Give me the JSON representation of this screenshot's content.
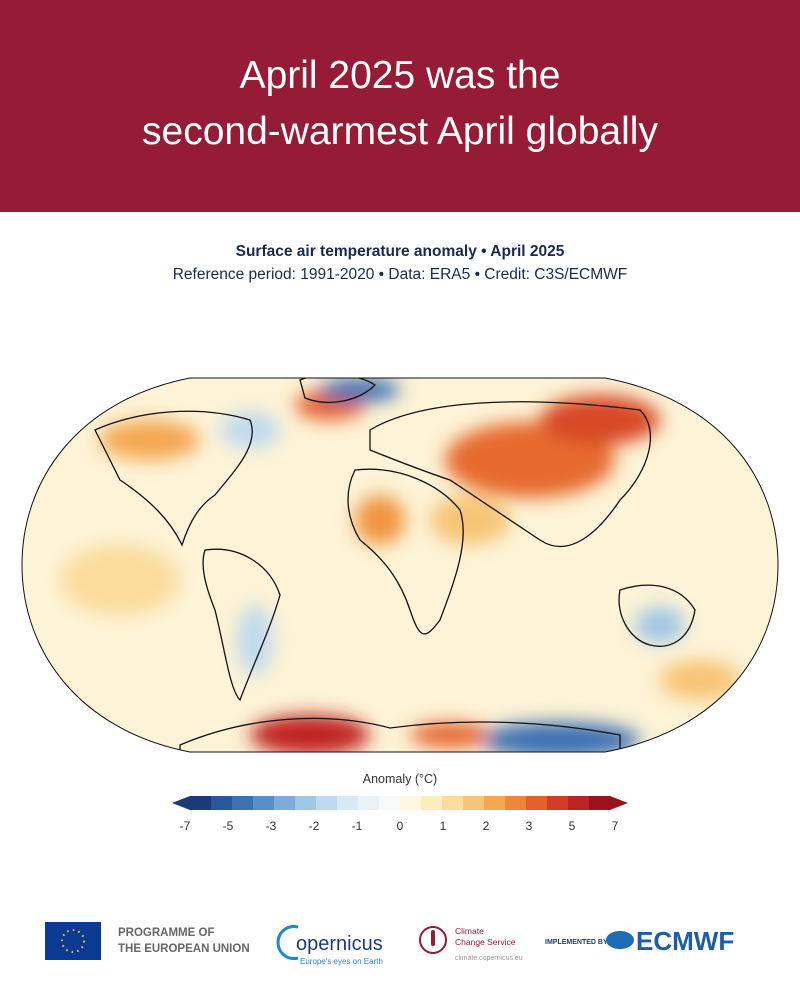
{
  "header": {
    "title_lines": [
      "April 2025 was the",
      "second-warmest April globally"
    ]
  },
  "subtitle": {
    "line1": "Surface air temperature anomaly • April 2025",
    "line2": "Reference period: 1991-2020 • Data: ERA5 • Credit: C3S/ECMWF"
  },
  "colorbar": {
    "label": "Anomaly (°C)",
    "ticks": [
      -7,
      -5,
      -3,
      -2,
      -1,
      0,
      1,
      2,
      3,
      5,
      7
    ],
    "colors": [
      "#1d3a78",
      "#2a579c",
      "#3d71b3",
      "#5790c9",
      "#7bacda",
      "#9fc7e7",
      "#bfdaef",
      "#d7e9f5",
      "#e8f2f8",
      "#f6fafb",
      "#fdf7e2",
      "#fcedc0",
      "#fbdc9c",
      "#f8c576",
      "#f4a853",
      "#ee873b",
      "#e4602c",
      "#d23e25",
      "#bb2422",
      "#9c111e"
    ]
  },
  "footer": {
    "eu": {
      "line1": "PROGRAMME OF",
      "line2": "THE EUROPEAN UNION"
    },
    "copernicus": {
      "name": "opernicus",
      "tagline": "Europe's eyes on Earth"
    },
    "c3s": {
      "line1": "Climate",
      "line2": "Change Service",
      "url": "climate.copernicus.eu"
    },
    "ecmwf": {
      "prefix": "IMPLEMENTED BY",
      "name": "ECMWF"
    }
  }
}
